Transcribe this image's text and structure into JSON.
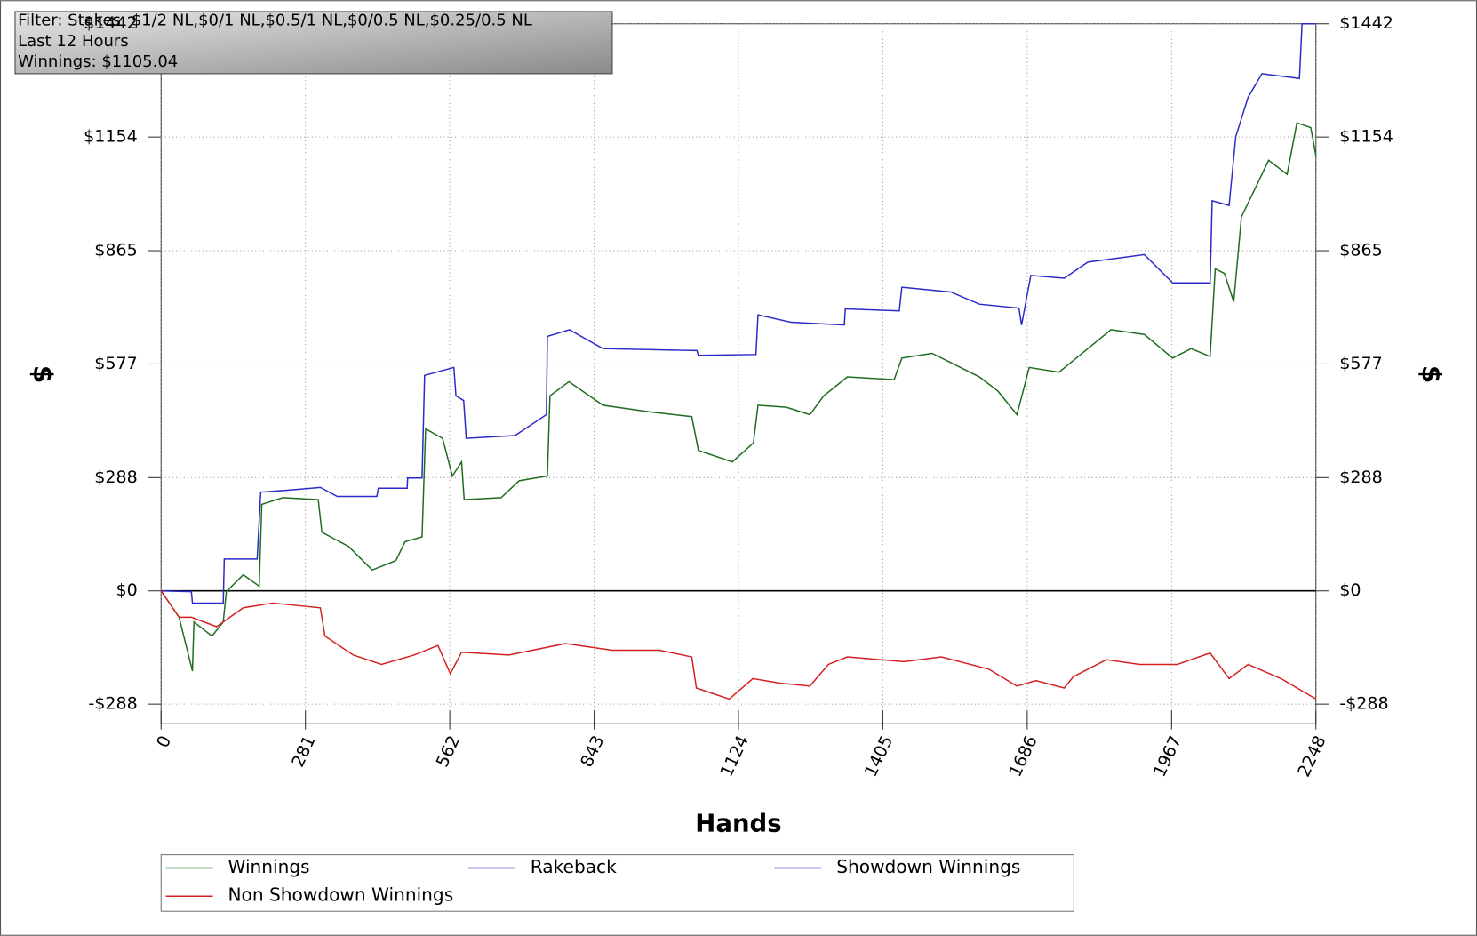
{
  "chart_data": {
    "type": "line",
    "info_box": [
      "Filter: Stakes: $1/2 NL,$0/1 NL,$0.5/1 NL,$0/0.5 NL,$0.25/0.5 NL",
      "Last  12 Hours",
      "Winnings: $1105.04"
    ],
    "x_label": "Hands",
    "y_label": "$",
    "xlim": [
      0,
      2248
    ],
    "xticks": [
      0,
      281,
      562,
      843,
      1124,
      1405,
      1686,
      1967,
      2248
    ],
    "ylim": [
      -338,
      1442
    ],
    "yticks": [
      {
        "value": -288,
        "label": "-$288"
      },
      {
        "value": 0,
        "label": "$0"
      },
      {
        "value": 288,
        "label": "$288"
      },
      {
        "value": 577,
        "label": "$577"
      },
      {
        "value": 865,
        "label": "$865"
      },
      {
        "value": 1154,
        "label": "$1154"
      },
      {
        "value": 1442,
        "label": "$1442"
      }
    ],
    "grid": true,
    "series": [
      {
        "name": "Winnings",
        "color": "#1f6b1f",
        "x": [
          0,
          35,
          61,
          64,
          99,
          121,
          127,
          160,
          191,
          196,
          237,
          306,
          313,
          365,
          411,
          457,
          475,
          508,
          515,
          548,
          567,
          585,
          590,
          662,
          697,
          752,
          757,
          794,
          860,
          951,
          1033,
          1046,
          1112,
          1153,
          1162,
          1217,
          1263,
          1290,
          1336,
          1427,
          1442,
          1501,
          1593,
          1629,
          1666,
          1690,
          1748,
          1804,
          1849,
          1914,
          1969,
          2005,
          2042,
          2052,
          2070,
          2088,
          2103,
          2134,
          2156,
          2192,
          2211,
          2238,
          2248
        ],
        "values": [
          0,
          -67,
          -204,
          -79,
          -115,
          -79,
          -2,
          41,
          12,
          220,
          237,
          232,
          149,
          113,
          53,
          77,
          125,
          137,
          412,
          388,
          292,
          328,
          232,
          237,
          280,
          292,
          496,
          532,
          472,
          455,
          443,
          357,
          328,
          376,
          472,
          467,
          448,
          496,
          544,
          537,
          592,
          604,
          544,
          508,
          448,
          568,
          556,
          616,
          664,
          652,
          592,
          616,
          596,
          819,
          807,
          735,
          951,
          1035,
          1095,
          1059,
          1190,
          1178,
          1107
        ]
      },
      {
        "name": "Rakeback",
        "color": "#2a2ac8"
      },
      {
        "name": "Showdown Winnings",
        "color": "#2a2ac8",
        "x": [
          0,
          59,
          61,
          121,
          123,
          187,
          194,
          246,
          310,
          343,
          420,
          423,
          479,
          480,
          508,
          513,
          570,
          574,
          589,
          594,
          689,
          750,
          752,
          795,
          860,
          1043,
          1046,
          1158,
          1162,
          1226,
          1330,
          1332,
          1437,
          1442,
          1537,
          1593,
          1670,
          1675,
          1693,
          1758,
          1804,
          1914,
          1969,
          2042,
          2046,
          2079,
          2092,
          2116,
          2143,
          2216,
          2221,
          2248
        ],
        "values": [
          0,
          -2,
          -31,
          -31,
          81,
          81,
          251,
          256,
          263,
          240,
          240,
          261,
          261,
          287,
          287,
          548,
          568,
          496,
          484,
          388,
          395,
          448,
          647,
          664,
          616,
          611,
          599,
          601,
          702,
          683,
          676,
          717,
          712,
          772,
          760,
          729,
          719,
          676,
          802,
          795,
          836,
          855,
          783,
          783,
          992,
          980,
          1155,
          1255,
          1315,
          1303,
          1442,
          1442
        ]
      },
      {
        "name": "Non Showdown Winnings",
        "color": "#d42020",
        "x": [
          0,
          35,
          59,
          108,
          160,
          218,
          310,
          319,
          374,
          429,
          493,
          539,
          563,
          585,
          677,
          787,
          878,
          970,
          1033,
          1042,
          1106,
          1152,
          1207,
          1263,
          1299,
          1336,
          1446,
          1519,
          1611,
          1666,
          1703,
          1758,
          1776,
          1840,
          1905,
          1978,
          2042,
          2079,
          2116,
          2180,
          2248
        ],
        "values": [
          0,
          -67,
          -67,
          -91,
          -43,
          -31,
          -43,
          -115,
          -163,
          -187,
          -163,
          -139,
          -211,
          -156,
          -163,
          -134,
          -151,
          -151,
          -168,
          -247,
          -275,
          -223,
          -235,
          -242,
          -187,
          -168,
          -180,
          -168,
          -199,
          -242,
          -228,
          -247,
          -218,
          -175,
          -187,
          -187,
          -158,
          -223,
          -187,
          -223,
          -275
        ]
      }
    ]
  }
}
